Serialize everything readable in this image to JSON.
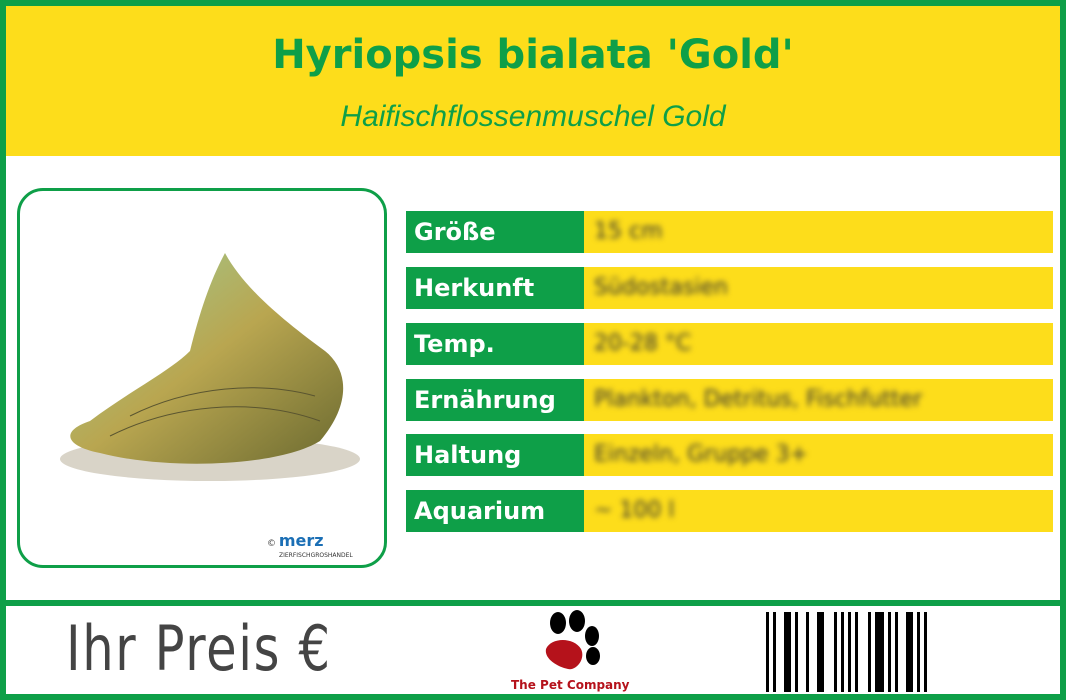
{
  "header": {
    "title": "Hyriopsis bialata 'Gold'",
    "subtitle": "Haifischflossenmuschel Gold"
  },
  "image": {
    "copyright": "©",
    "brand": "merz",
    "brand_sub": "ZIERFISCHGROSHANDEL"
  },
  "specs": [
    {
      "label": "Größe",
      "value": "15 cm"
    },
    {
      "label": "Herkunft",
      "value": "Südostasien"
    },
    {
      "label": "Temp.",
      "value": "20-28 °C"
    },
    {
      "label": "Ernährung",
      "value": "Plankton, Detritus, Fischfutter"
    },
    {
      "label": "Haltung",
      "value": "Einzeln, Gruppe 3+"
    },
    {
      "label": "Aquarium",
      "value": "~ 100 l"
    }
  ],
  "footer": {
    "price_label": "Ihr Preis €",
    "company": "The Pet Company"
  },
  "colors": {
    "green": "#0e9f48",
    "yellow": "#fddd1b",
    "paw_red": "#b5121b"
  }
}
